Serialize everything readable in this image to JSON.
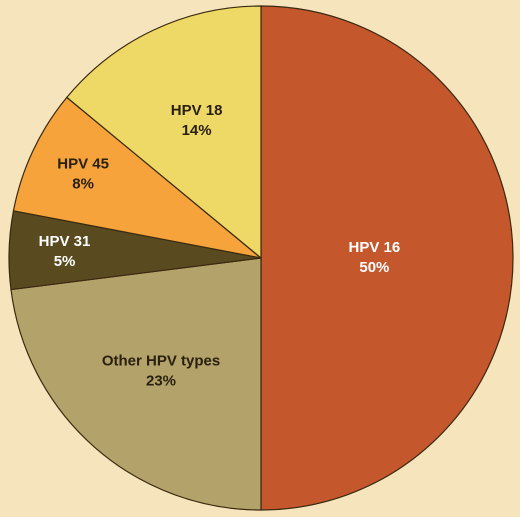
{
  "chart_data": {
    "type": "pie",
    "categories": [
      "HPV 16",
      "Other HPV types",
      "HPV 31",
      "HPV 45",
      "HPV 18"
    ],
    "values": [
      50,
      23,
      5,
      8,
      14
    ],
    "value_labels": [
      "50%",
      "23%",
      "5%",
      "8%",
      "14%"
    ],
    "colors": [
      "#c4572c",
      "#b3a26a",
      "#594a20",
      "#f5a33a",
      "#eed866"
    ]
  }
}
